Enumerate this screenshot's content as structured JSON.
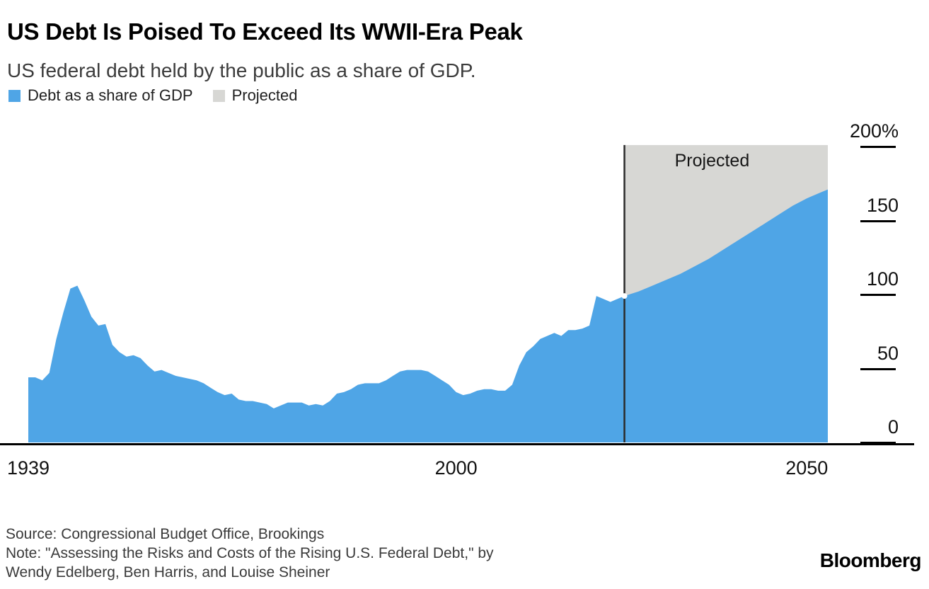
{
  "header": {
    "title": "US Debt Is Poised To Exceed Its WWII-Era Peak",
    "subtitle": "US federal debt held by the public as a share of GDP."
  },
  "legend": [
    {
      "label": "Debt as a share of GDP",
      "color": "#4fa5e6"
    },
    {
      "label": "Projected",
      "color": "#d7d7d4"
    }
  ],
  "chart_data": {
    "type": "area",
    "title": "US Debt Is Poised To Exceed Its WWII-Era Peak",
    "subtitle": "US federal debt held by the public as a share of GDP.",
    "unit": "percent of GDP",
    "x_range": [
      1939,
      2053
    ],
    "ylim": [
      0,
      220
    ],
    "y_ticks": [
      "200%",
      "150",
      "100",
      "50",
      "0"
    ],
    "y_tick_values": [
      200,
      150,
      100,
      50,
      0
    ],
    "x_tick_labels": [
      "1939",
      "2000",
      "2050"
    ],
    "x_tick_values": [
      1939,
      2000,
      2050
    ],
    "projection_start": 2024,
    "projection_band_top": 201,
    "projection_color": "#d7d7d4",
    "divider_color": "#2b2b2b",
    "annotation": {
      "text": "Projected",
      "year": 2036.5,
      "value": 190
    },
    "legend_position": "top-left",
    "grid": false,
    "series": [
      {
        "name": "Debt as a share of GDP",
        "color": "#4fa5e6",
        "points": [
          [
            1939,
            44
          ],
          [
            1940,
            44
          ],
          [
            1941,
            42
          ],
          [
            1942,
            47
          ],
          [
            1943,
            70
          ],
          [
            1944,
            88
          ],
          [
            1945,
            104
          ],
          [
            1946,
            106
          ],
          [
            1947,
            96
          ],
          [
            1948,
            85
          ],
          [
            1949,
            79
          ],
          [
            1950,
            80
          ],
          [
            1951,
            66
          ],
          [
            1952,
            61
          ],
          [
            1953,
            58
          ],
          [
            1954,
            59
          ],
          [
            1955,
            57
          ],
          [
            1956,
            52
          ],
          [
            1957,
            48
          ],
          [
            1958,
            49
          ],
          [
            1959,
            47
          ],
          [
            1960,
            45
          ],
          [
            1961,
            44
          ],
          [
            1962,
            43
          ],
          [
            1963,
            42
          ],
          [
            1964,
            40
          ],
          [
            1965,
            37
          ],
          [
            1966,
            34
          ],
          [
            1967,
            32
          ],
          [
            1968,
            33
          ],
          [
            1969,
            29
          ],
          [
            1970,
            28
          ],
          [
            1971,
            28
          ],
          [
            1972,
            27
          ],
          [
            1973,
            26
          ],
          [
            1974,
            23
          ],
          [
            1975,
            25
          ],
          [
            1976,
            27
          ],
          [
            1977,
            27
          ],
          [
            1978,
            27
          ],
          [
            1979,
            25
          ],
          [
            1980,
            26
          ],
          [
            1981,
            25
          ],
          [
            1982,
            28
          ],
          [
            1983,
            33
          ],
          [
            1984,
            34
          ],
          [
            1985,
            36
          ],
          [
            1986,
            39
          ],
          [
            1987,
            40
          ],
          [
            1988,
            40
          ],
          [
            1989,
            40
          ],
          [
            1990,
            42
          ],
          [
            1991,
            45
          ],
          [
            1992,
            48
          ],
          [
            1993,
            49
          ],
          [
            1994,
            49
          ],
          [
            1995,
            49
          ],
          [
            1996,
            48
          ],
          [
            1997,
            45
          ],
          [
            1998,
            42
          ],
          [
            1999,
            39
          ],
          [
            2000,
            34
          ],
          [
            2001,
            32
          ],
          [
            2002,
            33
          ],
          [
            2003,
            35
          ],
          [
            2004,
            36
          ],
          [
            2005,
            36
          ],
          [
            2006,
            35
          ],
          [
            2007,
            35
          ],
          [
            2008,
            39
          ],
          [
            2009,
            52
          ],
          [
            2010,
            61
          ],
          [
            2011,
            65
          ],
          [
            2012,
            70
          ],
          [
            2013,
            72
          ],
          [
            2014,
            74
          ],
          [
            2015,
            72
          ],
          [
            2016,
            76
          ],
          [
            2017,
            76
          ],
          [
            2018,
            77
          ],
          [
            2019,
            79
          ],
          [
            2020,
            99
          ],
          [
            2021,
            97
          ],
          [
            2022,
            95
          ],
          [
            2023,
            97
          ],
          [
            2024,
            99
          ],
          [
            2026,
            102
          ],
          [
            2028,
            106
          ],
          [
            2030,
            110
          ],
          [
            2032,
            114
          ],
          [
            2034,
            119
          ],
          [
            2036,
            124
          ],
          [
            2038,
            130
          ],
          [
            2040,
            136
          ],
          [
            2042,
            142
          ],
          [
            2044,
            148
          ],
          [
            2046,
            154
          ],
          [
            2048,
            160
          ],
          [
            2050,
            165
          ],
          [
            2052,
            169
          ],
          [
            2053,
            171
          ]
        ]
      }
    ]
  },
  "footer": {
    "source": "Source: Congressional Budget Office, Brookings",
    "note_line1": "Note: \"Assessing the Risks and Costs of the Rising U.S. Federal Debt,\" by",
    "note_line2": "Wendy Edelberg, Ben Harris, and Louise Sheiner",
    "brand": "Bloomberg"
  }
}
